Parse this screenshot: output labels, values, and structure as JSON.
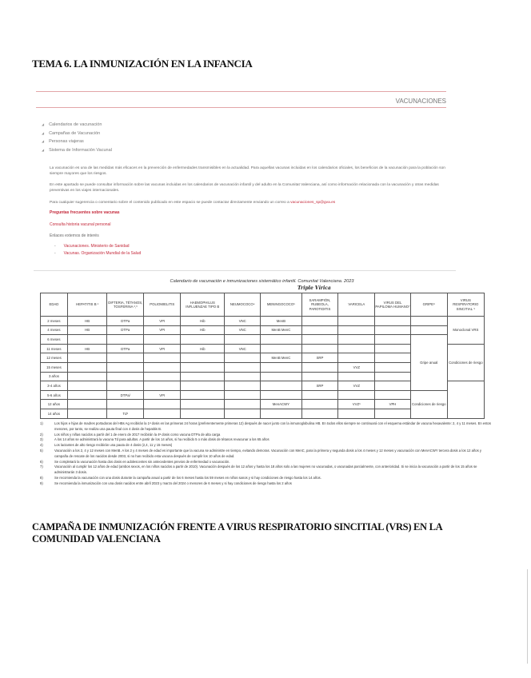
{
  "heading": "TEMA 6. LA INMUNIZACIÓN EN LA INFANCIA",
  "section_label": "VACUNACIONES",
  "menu": [
    "Calendarios de vacunación",
    "Campañas de Vacunación",
    "Personas viajeras",
    "Sistema de Información Vacunal"
  ],
  "intro": [
    "La vacunación es una de las medidas más eficaces en la prevención de enfermedades transmisibles en la actualidad. Para aquellas vacunas incluidas en los calendarios oficiales, los beneficios de la vacunación para la población son siempre mayores que los riesgos.",
    "En este apartado se puede consultar información sobre las vacunas incluidas en los calendarios de vacunación infantil y del adulto en la Comunitat Valenciana, así como información relacionada con la vacunación y otras medidas preventivas en los viajes internacionales."
  ],
  "contact_text": "Para cualquier sugerencia o comentario sobre el contenido publicado en este espacio se puede contactar directamente enviando un correo a",
  "contact_email": "vacunaciones_sp@gva.es",
  "links": [
    "Preguntas frecuentes sobre vacunas",
    "Consulta historia vacunal personal"
  ],
  "external_label": "Enlaces externos de interés",
  "external_links": [
    "Vacunaciones. Ministerio de Sanidad",
    "Vacunas. Organización Mundial de la Salud"
  ],
  "table": {
    "caption": "Calendario de vacunación e inmunizaciones sistemático infantil. Comunitat Valenciana. 2023",
    "handwritten_note": "Triple Vírica",
    "headers": [
      "EDAD",
      "HEPATITIS B ¹",
      "DIFTERIA, TÉTANOS, TOSFERINA ²,³",
      "POLIOMIELITIS",
      "HAEMOPHILUS INFLUENZAE TIPO B",
      "NEUMOCOCO⁴",
      "MENINGOCOCO⁵",
      "SARAMPIÓN, RUBEOLA, PAROTIDITIS",
      "VARICELA",
      "VIRUS DEL PAPILOMA HUMANO⁷",
      "GRIPE⁸",
      "VIRUS RESPIRATORIO SINCITIAL ⁹"
    ],
    "rows": [
      [
        "2 meses",
        "HB",
        "DTPa",
        "VPI",
        "Hib",
        "VNC",
        "MenB",
        "",
        "",
        "",
        "",
        ""
      ],
      [
        "4 meses",
        "HB",
        "DTPa",
        "VPI",
        "Hib",
        "VNC",
        "MenB MenC",
        "",
        "",
        "",
        "",
        ""
      ],
      [
        "6 meses",
        "",
        "",
        "",
        "",
        "",
        "",
        "",
        "",
        "",
        "",
        ""
      ],
      [
        "11 meses",
        "HB",
        "DTPa",
        "VPI",
        "Hib",
        "VNC",
        "",
        "",
        "",
        "",
        "",
        ""
      ],
      [
        "12 meses",
        "",
        "",
        "",
        "",
        "",
        "MenB MenC",
        "SRP",
        "",
        "",
        "",
        ""
      ],
      [
        "15 meses",
        "",
        "",
        "",
        "",
        "",
        "",
        "",
        "VVZ",
        "",
        "",
        ""
      ],
      [
        "3 años",
        "",
        "",
        "",
        "",
        "",
        "",
        "",
        "",
        "",
        "",
        ""
      ],
      [
        "3-4 años",
        "",
        "",
        "",
        "",
        "",
        "",
        "SRP",
        "VVZ",
        "",
        "",
        ""
      ],
      [
        "5-6 años",
        "",
        "DTPa/",
        "VPI",
        "",
        "",
        "",
        "",
        "",
        "",
        "",
        ""
      ],
      [
        "12 años",
        "",
        "",
        "",
        "",
        "",
        "MenACWY",
        "",
        "VVZ⁶",
        "VPH",
        "",
        ""
      ],
      [
        "14 años",
        "",
        "Td³",
        "",
        "",
        "",
        "",
        "",
        "",
        "",
        "",
        ""
      ]
    ],
    "spans": {
      "gripe_row1": "",
      "gripe_row2": "",
      "gripe_main": "Gripe anual",
      "gripe_risk": "Condiciones de riesgo",
      "vrs_main": "Monoclonal VRS",
      "vrs_risk": "Condiciones de riesgo",
      "vrs_rest": ""
    }
  },
  "notes": [
    [
      "1)",
      "Los hijos e hijas de madres portadoras del HBs Ag recibirán la 1ª dosis en las primeras 24 horas (preferentemente primeras 12) después de nacer junto con la inmunoglobulina HB. En todos ellos siempre se continuará con el esquema estándar de vacuna hexavalente: 2, 4 y 11 meses. En estos menores, por tanto, se realiza una pauta final con 4 dosis de hepatitis B."
    ],
    [
      "2)",
      "Los niños y niñas nacidos a partir del 1 de enero de 2017 recibirán la 4ª dosis como vacuna DTPa de alta carga"
    ],
    [
      "3)",
      "A los 14 años se administrará la vacuna Td para adultos. A partir de los 14 años, si ha recibido 5 o más dosis de tétanos revacunar a los 65 años"
    ],
    [
      "4)",
      "Los lactantes de alto riesgo recibirán una pauta de 4 dosis (2,4, 11 y 15 meses)"
    ],
    [
      "5)",
      "Vacunación a los 2, 4 y 12 meses con MenB. A los 2 y 4 meses de edad es importante que la vacuna se administre en tiempo, evitando demoras. Vacunación con MenC, para la primera y segunda dosis a los 4 meses y 12 meses y vacunación con MenACWY tercera dosis a los 12 años y campaña de rescate de los nacidos desde 2003, si no han recibido esta vacuna después de cumplir los 10 años de edad."
    ],
    [
      "6)",
      "Se completará la vacunación hasta dos dosis en adolescentes sin antecedentes previos de enfermedad o vacunación."
    ],
    [
      "7)",
      "Vacunación al cumplir los 12 años de edad (ambos sexos, en los niños nacidos a partir de 2010). Vacunación después de los 12 años y hasta los 18 años solo a las mujeres no vacunadas, o vacunadas parcialmente, con anterioridad. Si se inicia la vacunación a partir de los 15 años se administrarán 3 dosis."
    ],
    [
      "8)",
      "Se recomienda la vacunación con una dosis durante la campaña anual a partir de los 6 meses hasta los 59 meses en niños sanos y si hay condiciones de riesgo hasta los 14 años."
    ],
    [
      "9)",
      "Se recomienda la inmunización con una dosis nacidos entre abril 2023 y marzo del 2024 o menores de 6 meses y si hay condiciones de riesgo hasta los 2 años"
    ]
  ],
  "heading2": "CAMPAÑA DE INMUNIZACIÓN FRENTE A VIRUS RESPIRATORIO SINCITIAL (VRS) EN LA COMUNIDAD VALENCIANA",
  "colors": {
    "accent": "#c4283a",
    "rule": "#e2a5a8"
  }
}
